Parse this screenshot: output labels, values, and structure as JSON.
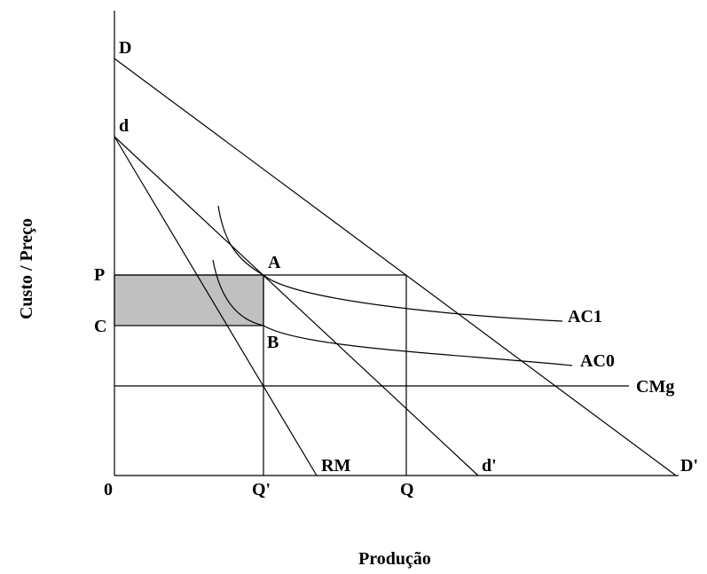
{
  "labels": {
    "origin": "0",
    "D": "D",
    "d": "d",
    "P": "P",
    "C": "C",
    "A": "A",
    "B": "B",
    "AC1": "AC1",
    "AC0": "AC0",
    "CMg": "CMg",
    "RM": "RM",
    "d_prime": "d'",
    "D_prime": "D'",
    "Q_prime": "Q'",
    "Q": "Q"
  },
  "axes": {
    "x_title": "Produção",
    "y_title": "Custo / Preço"
  },
  "colors": {
    "line": "#000000",
    "shaded_region": "#c0c0c0",
    "background": "#ffffff"
  }
}
